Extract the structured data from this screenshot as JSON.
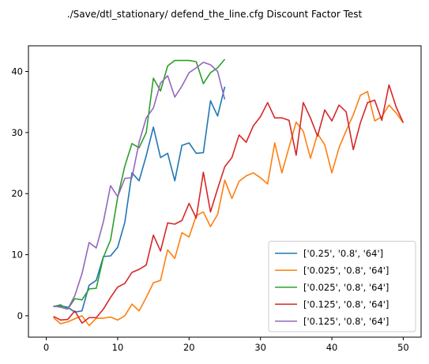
{
  "chart_data": {
    "type": "line",
    "title": "./Save/dtl_stationary/ defend_the_line.cfg Discount Factor Test",
    "xlabel": "",
    "ylabel": "",
    "xlim": [
      -2.5,
      52.5
    ],
    "ylim": [
      -3.5,
      44.2
    ],
    "xticks": [
      0,
      10,
      20,
      30,
      40,
      50
    ],
    "yticks": [
      0,
      10,
      20,
      30,
      40
    ],
    "grid": false,
    "legend_position": "lower right",
    "series": [
      {
        "name": "['0.25', '0.8', '64']",
        "color": "#1f77b4",
        "x": [
          1,
          2,
          3,
          4,
          5,
          6,
          7,
          8,
          9,
          10,
          11,
          12,
          13,
          14,
          15,
          16,
          17,
          18,
          19,
          20,
          21,
          22,
          23,
          24,
          25
        ],
        "y": [
          1.5,
          1.6,
          1.4,
          0.6,
          0.8,
          5.0,
          5.8,
          9.7,
          9.8,
          11.2,
          15.3,
          23.4,
          22.1,
          26.2,
          30.9,
          25.9,
          26.6,
          22.1,
          27.9,
          28.3,
          26.6,
          26.7,
          35.2,
          32.7,
          37.5
        ]
      },
      {
        "name": "['0.025', '0.8', '64']",
        "color": "#ff7f0e",
        "x": [
          1,
          2,
          3,
          4,
          5,
          6,
          7,
          8,
          9,
          10,
          11,
          12,
          13,
          14,
          15,
          16,
          17,
          18,
          19,
          20,
          21,
          22,
          23,
          24,
          25,
          26,
          27,
          28,
          29,
          30,
          31,
          32,
          33,
          34,
          35,
          36,
          37,
          38,
          39,
          40,
          41,
          42,
          43,
          44,
          45,
          46,
          47,
          48,
          49,
          50
        ],
        "y": [
          -0.3,
          -1.3,
          -1.0,
          -0.5,
          0.0,
          -1.6,
          -0.4,
          -0.4,
          -0.2,
          -0.7,
          0.0,
          1.9,
          0.8,
          3.0,
          5.4,
          5.8,
          10.8,
          9.4,
          13.6,
          12.9,
          16.4,
          17.0,
          14.6,
          16.6,
          22.2,
          19.2,
          22.0,
          22.9,
          23.4,
          22.6,
          21.6,
          28.3,
          23.4,
          27.6,
          31.7,
          30.2,
          25.8,
          29.8,
          28.0,
          23.4,
          27.5,
          30.3,
          32.9,
          36.1,
          36.7,
          31.9,
          32.6,
          34.5,
          33.2,
          31.6
        ]
      },
      {
        "name": "['0.025', '0.8', '64']",
        "color": "#2ca02c",
        "x": [
          1,
          2,
          3,
          4,
          5,
          6,
          7,
          8,
          9,
          10,
          11,
          12,
          13,
          14,
          15,
          16,
          17,
          18,
          19,
          20,
          21,
          22,
          23,
          24,
          25
        ],
        "y": [
          1.5,
          1.8,
          1.1,
          2.8,
          2.6,
          4.4,
          4.5,
          9.6,
          12.4,
          19.4,
          24.5,
          28.2,
          27.5,
          30.0,
          38.9,
          36.8,
          40.9,
          41.8,
          41.8,
          41.8,
          41.6,
          38.0,
          39.8,
          40.6,
          42.0
        ]
      },
      {
        "name": "['0.125', '0.8', '64']",
        "color": "#d62728",
        "x": [
          1,
          2,
          3,
          4,
          5,
          6,
          7,
          8,
          9,
          10,
          11,
          12,
          13,
          14,
          15,
          16,
          17,
          18,
          19,
          20,
          21,
          22,
          23,
          24,
          25,
          26,
          27,
          28,
          29,
          30,
          31,
          32,
          33,
          34,
          35,
          36,
          37,
          38,
          39,
          40,
          41,
          42,
          43,
          44,
          45,
          46,
          47,
          48,
          49,
          50
        ],
        "y": [
          -0.1,
          -0.7,
          -0.6,
          0.8,
          -1.2,
          -0.3,
          -0.3,
          1.1,
          3.0,
          4.7,
          5.3,
          7.1,
          7.6,
          8.3,
          13.2,
          10.6,
          15.2,
          15.0,
          15.6,
          18.4,
          16.0,
          23.5,
          17.0,
          20.8,
          24.4,
          25.9,
          29.6,
          28.4,
          31.1,
          32.6,
          34.9,
          32.4,
          32.4,
          32.0,
          26.3,
          34.9,
          32.4,
          29.4,
          33.7,
          31.9,
          34.5,
          33.4,
          27.2,
          31.6,
          34.9,
          35.3,
          32.0,
          37.8,
          34.2,
          31.6
        ]
      },
      {
        "name": "['0.125', '0.8', '64']",
        "color": "#9467bd",
        "x": [
          1,
          2,
          3,
          4,
          5,
          6,
          7,
          8,
          9,
          10,
          11,
          12,
          13,
          14,
          15,
          16,
          17,
          18,
          19,
          20,
          21,
          22,
          23,
          24,
          25
        ],
        "y": [
          1.6,
          1.4,
          1.1,
          3.3,
          6.9,
          12.0,
          11.1,
          15.4,
          21.3,
          19.5,
          22.5,
          22.6,
          28.4,
          32.4,
          34.0,
          38.1,
          39.3,
          35.8,
          37.6,
          39.8,
          40.6,
          41.5,
          41.1,
          40.0,
          35.4
        ]
      }
    ]
  }
}
